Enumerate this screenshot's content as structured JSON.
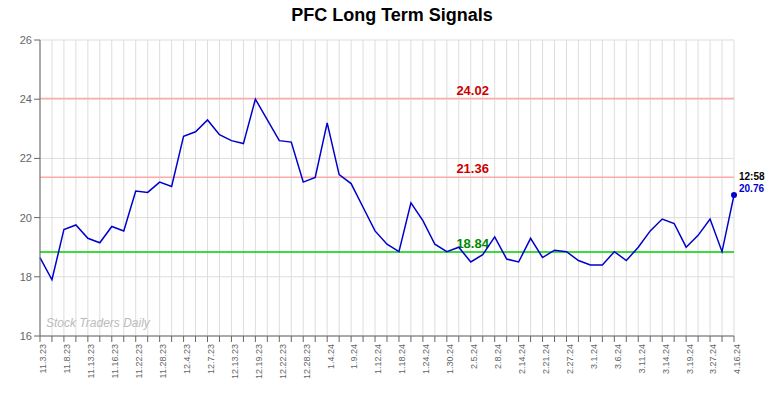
{
  "chart_data": {
    "type": "line",
    "title": "PFC Long Term Signals",
    "categories": [
      "11.3.23",
      null,
      "11.8.23",
      null,
      "11.13.23",
      null,
      "11.16.23",
      null,
      "11.22.23",
      null,
      "11.28.23",
      null,
      "12.4.23",
      null,
      "12.7.23",
      null,
      "12.13.23",
      null,
      "12.19.23",
      null,
      "12.22.23",
      null,
      "12.28.23",
      null,
      "1.4.24",
      null,
      "1.9.24",
      null,
      "1.12.24",
      null,
      "1.18.24",
      null,
      "1.24.24",
      null,
      "1.30.24",
      null,
      "2.5.24",
      null,
      "2.8.24",
      null,
      "2.14.24",
      null,
      "2.21.24",
      null,
      "2.27.24",
      null,
      "3.1.24",
      null,
      "3.6.24",
      null,
      "3.11.24",
      null,
      "3.14.24",
      null,
      "3.19.24",
      null,
      "3.27.24",
      null,
      "4.16.24"
    ],
    "values": [
      18.65,
      17.9,
      19.6,
      19.75,
      19.3,
      19.15,
      19.7,
      19.55,
      20.9,
      20.85,
      21.2,
      21.05,
      22.75,
      22.9,
      23.3,
      22.8,
      22.6,
      22.5,
      24.0,
      23.3,
      22.6,
      22.55,
      21.2,
      21.36,
      23.2,
      21.45,
      21.15,
      20.35,
      19.55,
      19.1,
      18.85,
      20.5,
      19.9,
      19.1,
      18.85,
      19.0,
      18.5,
      18.75,
      19.35,
      18.6,
      18.5,
      19.3,
      18.65,
      18.9,
      18.85,
      18.55,
      18.4,
      18.4,
      18.85,
      18.55,
      19.0,
      19.55,
      19.95,
      19.8,
      19.0,
      19.4,
      19.95,
      18.85,
      20.76
    ],
    "color": "#0000cc",
    "ylim": [
      16,
      26
    ],
    "yticks": [
      16,
      18,
      20,
      22,
      24,
      26
    ],
    "grid": true,
    "reference_lines": [
      {
        "value": 24.02,
        "color": "#ffaaaa",
        "label": {
          "text": "24.02",
          "color": "#cc0000"
        }
      },
      {
        "value": 21.36,
        "color": "#ffaaaa",
        "label": {
          "text": "21.36",
          "color": "#cc0000"
        }
      },
      {
        "value": 18.84,
        "color": "#00cc00",
        "label": {
          "text": "18.84",
          "color": "#008800"
        }
      }
    ],
    "annotations": [
      {
        "text": "12:58",
        "color": "#000000"
      },
      {
        "text": "20.76",
        "color": "#0000cc"
      }
    ],
    "watermark": {
      "text": "Stock Traders Daily",
      "color": "#bbbbbb"
    }
  }
}
